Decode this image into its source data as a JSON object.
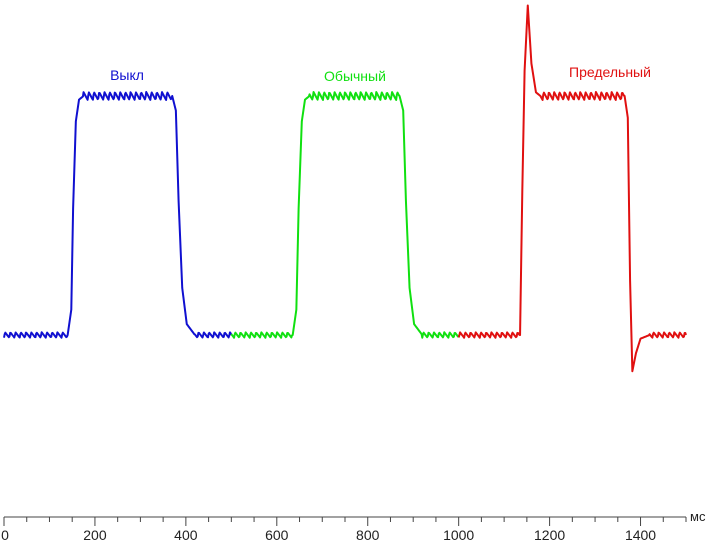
{
  "chart_data": {
    "type": "line",
    "title": "",
    "xlabel": "мс",
    "ylabel": "",
    "xlim": [
      0,
      1500
    ],
    "ylim": [
      0,
      1
    ],
    "grid": false,
    "x_ticks": [
      0,
      200,
      400,
      600,
      800,
      1000,
      1200,
      1400
    ],
    "x_tick_labels": [
      "0",
      "200",
      "400",
      "600",
      "800",
      "1000",
      "1200",
      "1400"
    ],
    "series": [
      {
        "name": "Выкл",
        "color": "#1010d0",
        "x": [
          0,
          140,
          148,
          152,
          158,
          165,
          175,
          200,
          370,
          378,
          384,
          392,
          402,
          420,
          500
        ],
        "y": [
          0.25,
          0.25,
          0.32,
          0.6,
          0.84,
          0.9,
          0.91,
          0.91,
          0.91,
          0.87,
          0.62,
          0.38,
          0.28,
          0.25,
          0.25
        ]
      },
      {
        "name": "Обычный",
        "color": "#10e010",
        "x": [
          500,
          635,
          643,
          648,
          655,
          662,
          672,
          700,
          870,
          878,
          884,
          892,
          902,
          920,
          1000
        ],
        "y": [
          0.25,
          0.25,
          0.32,
          0.6,
          0.84,
          0.9,
          0.91,
          0.91,
          0.91,
          0.87,
          0.62,
          0.38,
          0.28,
          0.25,
          0.25
        ]
      },
      {
        "name": "Предельный",
        "color": "#e01010",
        "x": [
          1000,
          1135,
          1140,
          1145,
          1152,
          1160,
          1170,
          1180,
          1365,
          1372,
          1377,
          1382,
          1390,
          1400,
          1420,
          1500
        ],
        "y": [
          0.25,
          0.25,
          0.65,
          0.98,
          1.16,
          1.0,
          0.92,
          0.91,
          0.91,
          0.85,
          0.4,
          0.15,
          0.2,
          0.24,
          0.25,
          0.25
        ]
      }
    ]
  }
}
